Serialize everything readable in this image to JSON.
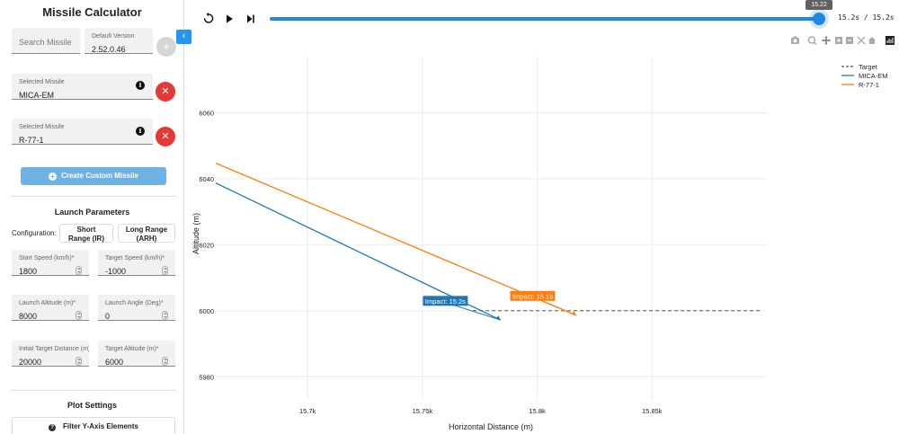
{
  "sidebar": {
    "title": "Missile Calculator",
    "search_placeholder": "Search Missile",
    "default_version_label": "Default Version",
    "default_version_value": "2.52.0.46",
    "add_icon": "plus",
    "selected_missiles": [
      {
        "label": "Selected Missile",
        "value": "MICA-EM"
      },
      {
        "label": "Selected Missile",
        "value": "R-77-1"
      }
    ],
    "info_icon": "i",
    "remove_icon": "✕",
    "create_button": "Create Custom Missile",
    "launch_params_title": "Launch Parameters",
    "configuration_label": "Configuration:",
    "config_options": [
      "Short Range (IR)",
      "Long Range (ARH)"
    ],
    "config_lines": [
      [
        "Short",
        "Range (IR)"
      ],
      [
        "Long Range",
        "(ARH)"
      ]
    ],
    "fields": [
      {
        "label": "Start Speed (km/h)*",
        "value": "1800"
      },
      {
        "label": "Target Speed (km/h)*",
        "value": "-1000"
      },
      {
        "label": "Launch Altitude (m)*",
        "value": "8000"
      },
      {
        "label": "Launch Angle (Deg)*",
        "value": "0"
      },
      {
        "label": "Initial Target Distance (m)",
        "value": "20000"
      },
      {
        "label": "Target Altitude (m)*",
        "value": "6000"
      }
    ],
    "plot_settings_title": "Plot Settings",
    "filter_button": "Filter Y-Axis Elements"
  },
  "player": {
    "slider_tooltip": "15.22",
    "time_readout": "15.2s / 15.2s",
    "progress": 1.0
  },
  "modebar_icons": [
    "camera-icon",
    "zoom-icon",
    "pan-icon",
    "zoom-in-icon",
    "zoom-out-icon",
    "autoscale-icon",
    "home-icon",
    "plotly-logo-icon"
  ],
  "chart_data": {
    "type": "line",
    "title": "",
    "xlabel": "Horizontal Distance (m)",
    "ylabel": "Altitude (m)",
    "xlim": [
      15660,
      15900
    ],
    "ylim": [
      5973,
      6077
    ],
    "x_tick_values": [
      15700,
      15750,
      15800,
      15850
    ],
    "x_ticks": [
      "15.7k",
      "15.75k",
      "15.8k",
      "15.85k"
    ],
    "y_ticks": [
      5980,
      6000,
      6020,
      6040,
      6060
    ],
    "grid": true,
    "legend_position": "top-right",
    "series": [
      {
        "name": "Target",
        "color": "#555555",
        "dash": true,
        "x": [
          15772,
          15897
        ],
        "y": [
          6000,
          6000
        ]
      },
      {
        "name": "MICA-EM",
        "color": "#1f77b4",
        "dash": false,
        "x": [
          15660,
          15784
        ],
        "y": [
          6038.7,
          5997.2
        ]
      },
      {
        "name": "R-77-1",
        "color": "#ff7f0e",
        "dash": false,
        "x": [
          15660,
          15817
        ],
        "y": [
          6044.7,
          5998.6
        ]
      }
    ],
    "annotations": [
      {
        "text": "Impact: 15.2s",
        "color": "#1f77b4",
        "x": 15784,
        "y": 5997.2,
        "label_x": 15760,
        "label_y": 6003
      },
      {
        "text": "Impact: 15.1s",
        "color": "#ff7f0e",
        "x": 15817,
        "y": 5998.6,
        "label_x": 15798,
        "label_y": 6004.5
      }
    ]
  }
}
